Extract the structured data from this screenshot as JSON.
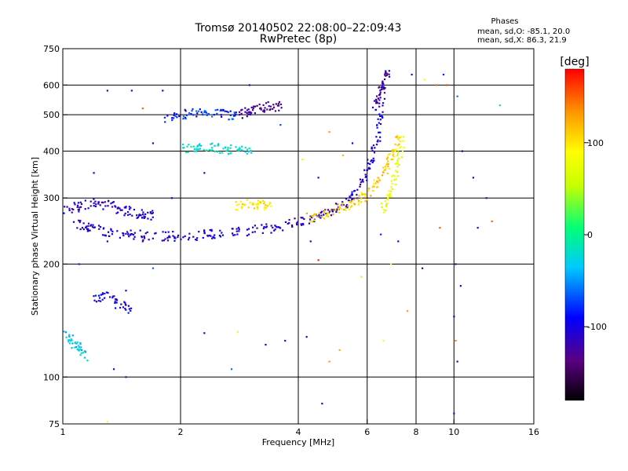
{
  "chart_data": {
    "type": "scatter",
    "title": "Tromsø 20140502 22:08:00–22:09:43",
    "subtitle": "RwPretec (8p)",
    "stats_header": "Phases",
    "stats_o": "mean, sd,O: -85.1, 20.0",
    "stats_x": "mean, sd,X: 86.3, 21.9",
    "xlabel": "Frequency [MHz]",
    "ylabel": "Stationary phase Virtual Height [km]",
    "x_scale": "log",
    "y_scale": "log",
    "xlim": [
      1,
      16
    ],
    "ylim": [
      75,
      750
    ],
    "x_ticks": [
      1,
      2,
      4,
      6,
      8,
      10,
      16
    ],
    "x_gridlines": [
      2,
      4,
      6,
      8,
      10
    ],
    "y_ticks": [
      75,
      100,
      200,
      300,
      400,
      500,
      600,
      750
    ],
    "y_gridlines": [
      100,
      200,
      300,
      400,
      500,
      600
    ],
    "colorbar": {
      "label": "[deg]",
      "range": [
        -180,
        180
      ],
      "ticks": [
        100,
        0,
        -100
      ]
    },
    "traces": [
      {
        "x": [
          1.08,
          1.15,
          1.25,
          1.35,
          1.5,
          1.7,
          1.9,
          2.1,
          2.4,
          2.7,
          3.0,
          3.4,
          3.8,
          4.2,
          4.6,
          5.0,
          5.4,
          5.7,
          6.0,
          6.2,
          6.4,
          6.5,
          6.6
        ],
        "y": [
          255,
          250,
          246,
          242,
          240,
          238,
          237,
          238,
          240,
          242,
          245,
          250,
          256,
          263,
          272,
          282,
          297,
          315,
          350,
          390,
          440,
          510,
          600
        ],
        "phase": -105
      },
      {
        "x": [
          1.0,
          1.1,
          1.2,
          1.3,
          1.4,
          1.5,
          1.6,
          1.7
        ],
        "y": [
          280,
          285,
          290,
          288,
          280,
          275,
          272,
          270
        ],
        "phase": -110
      },
      {
        "x": [
          2.8,
          3.0,
          3.2,
          3.4
        ],
        "y": [
          285,
          290,
          288,
          285
        ],
        "phase": 95
      },
      {
        "x": [
          4.2,
          4.6,
          5.0,
          5.4,
          5.8,
          6.2,
          6.5,
          6.8,
          7.0,
          7.2
        ],
        "y": [
          265,
          270,
          278,
          288,
          300,
          320,
          340,
          370,
          400,
          430
        ],
        "phase": 110
      },
      {
        "x": [
          6.6,
          6.8,
          7.0,
          7.2,
          7.4
        ],
        "y": [
          280,
          300,
          330,
          380,
          440
        ],
        "phase": 75
      },
      {
        "x": [
          1.8,
          2.0,
          2.2,
          2.4,
          2.6,
          2.8
        ],
        "y": [
          480,
          500,
          510,
          505,
          500,
          495
        ],
        "phase": -75
      },
      {
        "x": [
          2.0,
          2.2,
          2.4,
          2.6,
          2.8,
          3.0
        ],
        "y": [
          405,
          410,
          408,
          405,
          402,
          400
        ],
        "phase": -20
      },
      {
        "x": [
          2.8,
          3.0,
          3.2,
          3.4,
          3.6
        ],
        "y": [
          500,
          510,
          520,
          525,
          530
        ],
        "phase": -135
      },
      {
        "x": [
          1.0,
          1.05,
          1.1,
          1.15
        ],
        "y": [
          130,
          125,
          120,
          110
        ],
        "phase": -30
      },
      {
        "x": [
          1.2,
          1.3,
          1.4,
          1.5
        ],
        "y": [
          160,
          165,
          155,
          150
        ],
        "phase": -100
      },
      {
        "x": [
          6.2,
          6.4,
          6.6,
          6.8
        ],
        "y": [
          500,
          560,
          620,
          650
        ],
        "phase": -125
      }
    ],
    "scattered_points": [
      [
        4.1,
        380,
        60
      ],
      [
        4.5,
        340,
        -110
      ],
      [
        5.2,
        390,
        120
      ],
      [
        5.5,
        420,
        -90
      ],
      [
        7.8,
        640,
        -100
      ],
      [
        8.4,
        620,
        90
      ],
      [
        9.0,
        600,
        150
      ],
      [
        9.4,
        640,
        -80
      ],
      [
        9.6,
        600,
        160
      ],
      [
        10.2,
        560,
        -60
      ],
      [
        10.5,
        400,
        -100
      ],
      [
        11.2,
        340,
        -110
      ],
      [
        12.1,
        300,
        -120
      ],
      [
        12.5,
        260,
        150
      ],
      [
        13.1,
        530,
        -20
      ],
      [
        10.1,
        200,
        -120
      ],
      [
        10.4,
        175,
        -90
      ],
      [
        10.0,
        145,
        -100
      ],
      [
        10.1,
        125,
        140
      ],
      [
        10.2,
        110,
        -95
      ],
      [
        10.0,
        80,
        -120
      ],
      [
        8.3,
        195,
        -110
      ],
      [
        7.6,
        150,
        130
      ],
      [
        6.6,
        125,
        90
      ],
      [
        5.1,
        118,
        120
      ],
      [
        4.8,
        110,
        130
      ],
      [
        4.2,
        128,
        -100
      ],
      [
        4.6,
        85,
        -110
      ],
      [
        3.7,
        125,
        -100
      ],
      [
        3.3,
        122,
        -90
      ],
      [
        2.8,
        132,
        80
      ],
      [
        2.7,
        105,
        -60
      ],
      [
        2.3,
        131,
        -100
      ],
      [
        4.5,
        205,
        170
      ],
      [
        4.3,
        230,
        -110
      ],
      [
        5.8,
        185,
        60
      ],
      [
        6.5,
        240,
        -80
      ],
      [
        3.0,
        600,
        -120
      ],
      [
        3.6,
        470,
        -70
      ],
      [
        4.8,
        450,
        130
      ],
      [
        1.5,
        580,
        -130
      ],
      [
        1.6,
        520,
        150
      ],
      [
        1.8,
        580,
        -100
      ],
      [
        1.7,
        420,
        -110
      ],
      [
        1.3,
        580,
        -140
      ],
      [
        1.2,
        350,
        -100
      ],
      [
        1.9,
        300,
        -90
      ],
      [
        2.3,
        350,
        -110
      ],
      [
        1.1,
        200,
        -80
      ],
      [
        1.3,
        230,
        -100
      ],
      [
        1.6,
        230,
        -120
      ],
      [
        1.45,
        170,
        -110
      ],
      [
        1.35,
        105,
        -120
      ],
      [
        1.45,
        100,
        -130
      ],
      [
        1.3,
        76,
        90
      ],
      [
        1.7,
        195,
        -60
      ],
      [
        11.5,
        250,
        -100
      ],
      [
        9.2,
        250,
        150
      ],
      [
        7.2,
        230,
        -90
      ],
      [
        6.9,
        200,
        80
      ]
    ]
  }
}
